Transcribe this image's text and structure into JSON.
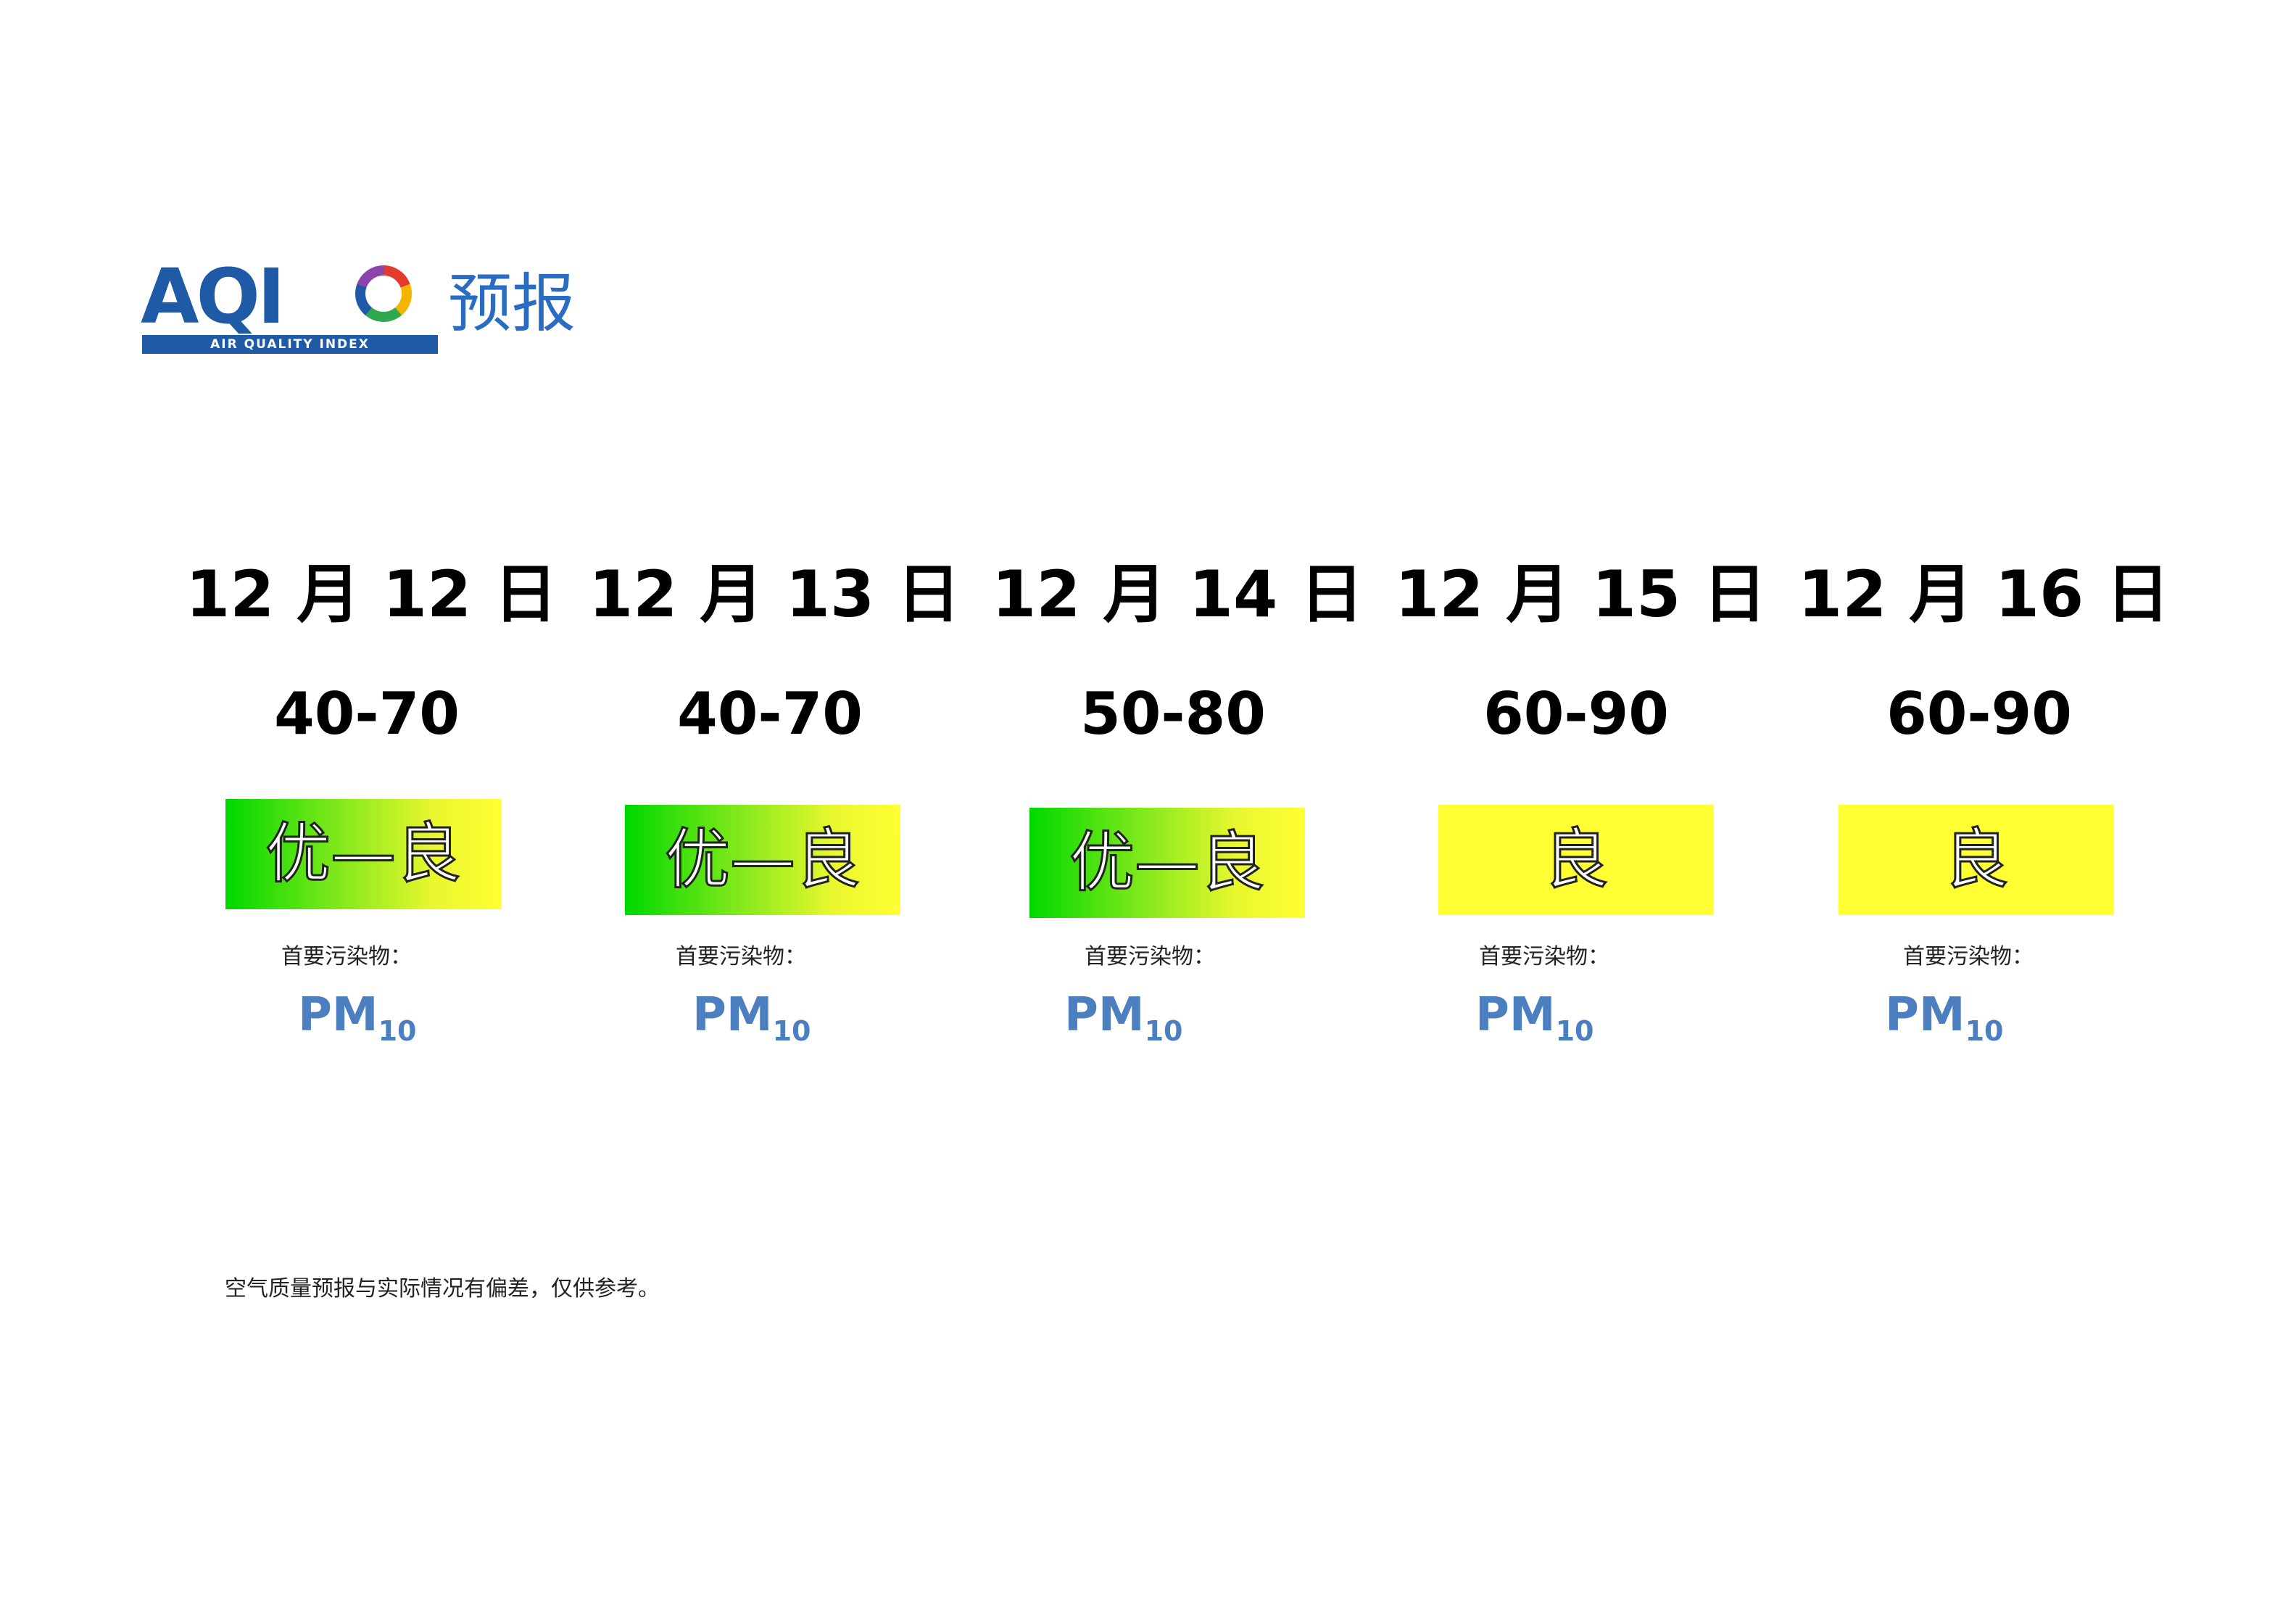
{
  "logo": {
    "mark": "AQI",
    "subtitle": "AIR QUALITY INDEX",
    "title": "预报",
    "colors": {
      "blue": "#1f5aa6",
      "title_blue": "#2a6cc2"
    }
  },
  "forecast": [
    {
      "date": "12 月 12 日",
      "range": "40-70",
      "level": "优—良",
      "level_style": "green-yellow-gradient",
      "label": "首要污染物：",
      "pollutant": "PM",
      "pollutant_sub": "10"
    },
    {
      "date": "12 月 13 日",
      "range": "40-70",
      "level": "优—良",
      "level_style": "green-yellow-gradient",
      "label": "首要污染物：",
      "pollutant": "PM",
      "pollutant_sub": "10"
    },
    {
      "date": "12 月 14 日",
      "range": "50-80",
      "level": "优—良",
      "level_style": "green-yellow-gradient",
      "label": "首要污染物：",
      "pollutant": "PM",
      "pollutant_sub": "10"
    },
    {
      "date": "12 月 15 日",
      "range": "60-90",
      "level": "良",
      "level_style": "yellow",
      "label": "首要污染物：",
      "pollutant": "PM",
      "pollutant_sub": "10"
    },
    {
      "date": "12 月 16 日",
      "range": "60-90",
      "level": "良",
      "level_style": "yellow",
      "label": "首要污染物：",
      "pollutant": "PM",
      "pollutant_sub": "10"
    }
  ],
  "footnote": "空气质量预报与实际情况有偏差，仅供参考。",
  "colors": {
    "green": "#00d800",
    "yellow": "#ffff33",
    "pollutant_blue": "#4c7fc0"
  }
}
